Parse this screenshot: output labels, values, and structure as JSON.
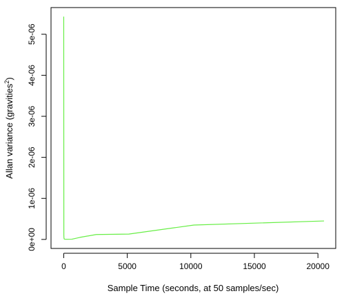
{
  "chart_data": {
    "type": "line",
    "xlabel": "Sample Time (seconds, at 50 samples/sec)",
    "ylabel": "Allan variance (gravities",
    "ylabel_superscript": "2",
    "ylabel_suffix": ")",
    "xlim": [
      -1000,
      21400
    ],
    "ylim": [
      -2.2e-07,
      5.65e-06
    ],
    "x_ticks": [
      0,
      5000,
      10000,
      15000,
      20000
    ],
    "x_tick_labels": [
      "0",
      "5000",
      "10000",
      "15000",
      "20000"
    ],
    "y_ticks": [
      0,
      1e-06,
      2e-06,
      3e-06,
      4e-06,
      5e-06
    ],
    "y_tick_labels": [
      "0e+00",
      "1e-06",
      "2e-06",
      "3e-06",
      "4e-06",
      "5e-06"
    ],
    "grid": false,
    "series": [
      {
        "color": "#66ee44",
        "x": [
          0,
          10,
          20,
          40,
          80,
          160,
          320,
          640,
          1280,
          2560,
          5120,
          10240,
          20480
        ],
        "y": [
          5.43e-06,
          1e-07,
          3e-08,
          1e-08,
          5e-09,
          3e-09,
          3e-09,
          5e-09,
          5e-08,
          1.2e-07,
          1.3e-07,
          3.5e-07,
          4.5e-07
        ]
      }
    ]
  }
}
